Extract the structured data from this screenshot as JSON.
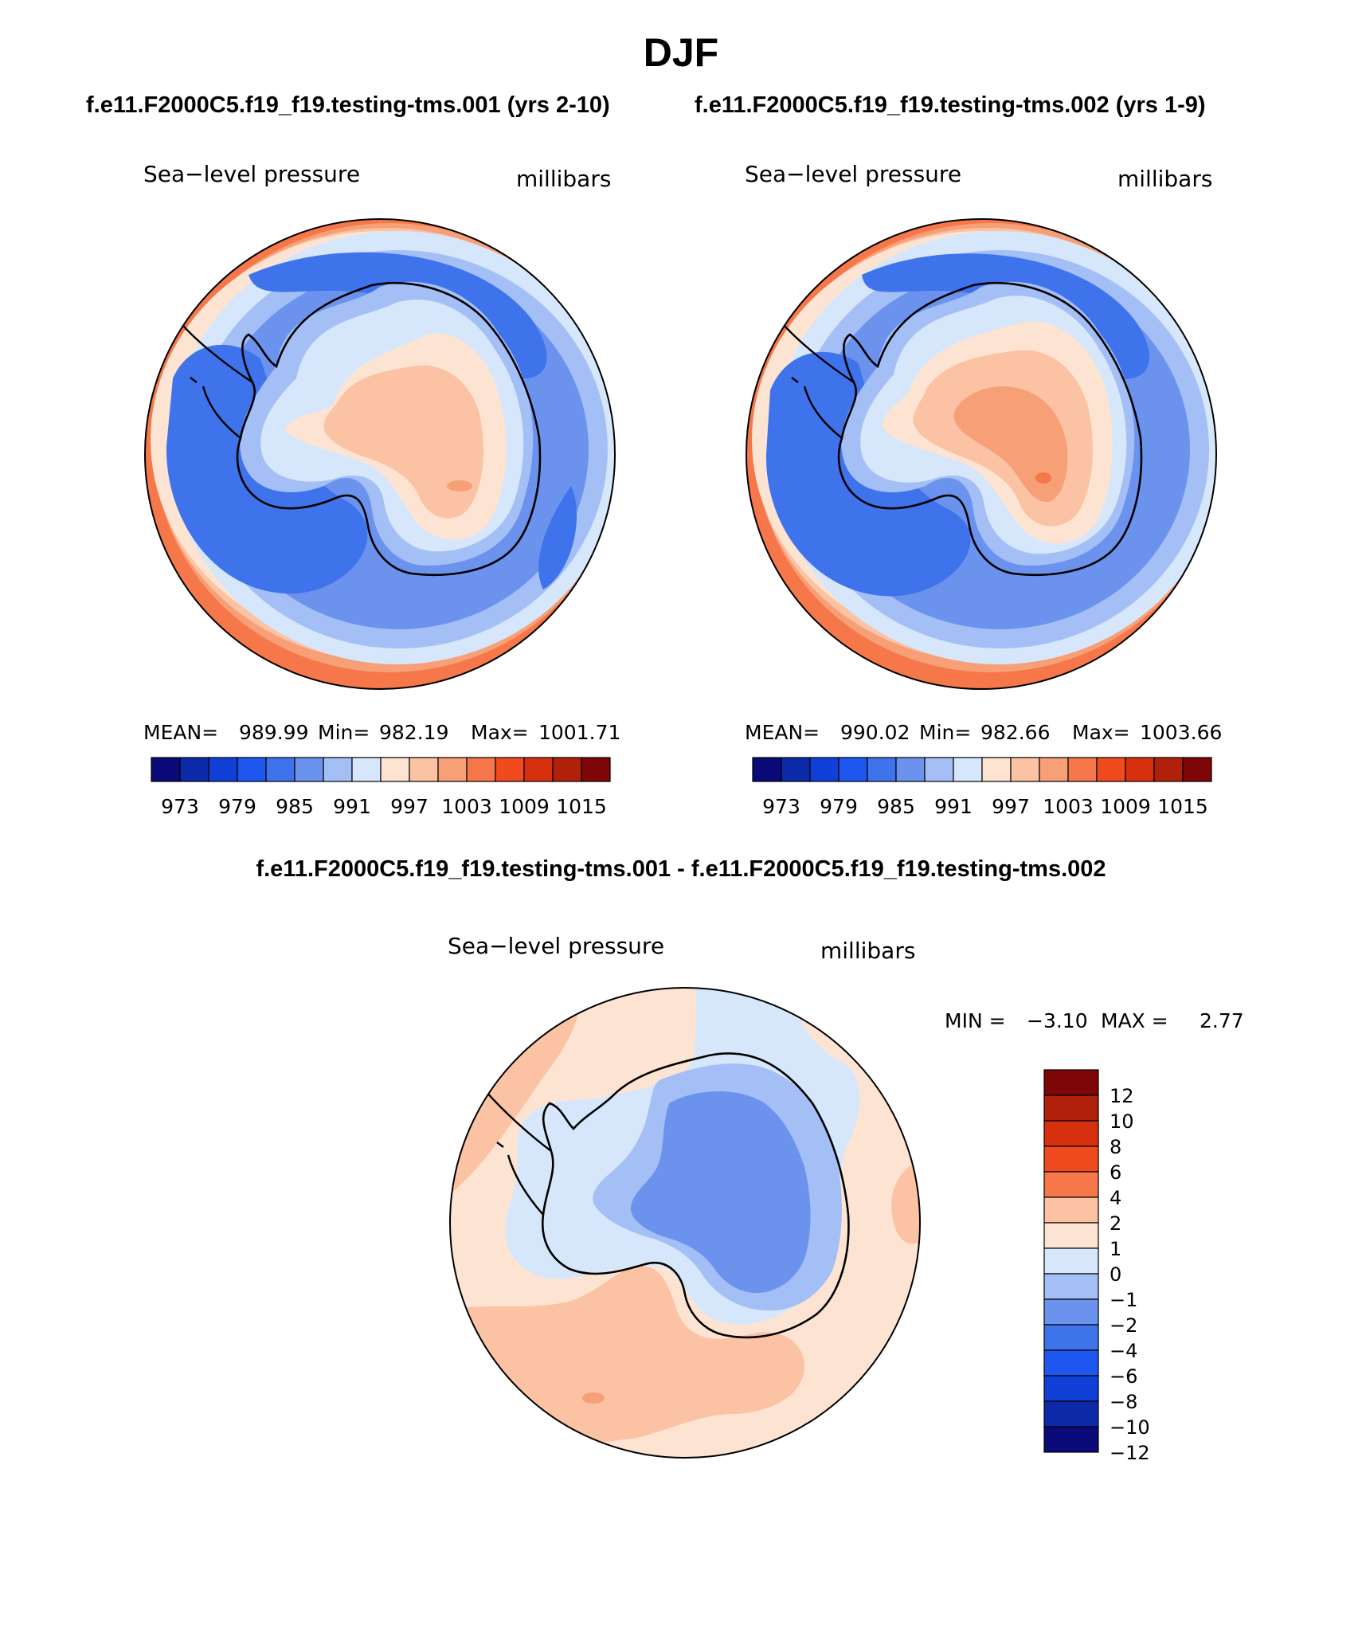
{
  "chart_data": {
    "type": "heatmap",
    "title": "DJF",
    "panels": [
      {
        "id": "case1",
        "case_title": "f.e11.F2000C5.f19_f19.testing-tms.001 (yrs 2-10)",
        "left_label": "Sea−level pressure",
        "right_label": "millibars",
        "stats": {
          "mean_label": "MEAN=",
          "mean": "989.99",
          "min_label": "Min=",
          "min": "982.19",
          "max_label": "Max=",
          "max": "1001.71"
        },
        "colorbar": {
          "colors": [
            "#0a0a78",
            "#0c2aa8",
            "#1040d8",
            "#1e56f0",
            "#3f73ec",
            "#6b93ee",
            "#a4bff5",
            "#d6e7fb",
            "#fde4d2",
            "#fbc2a4",
            "#f79f76",
            "#f5774a",
            "#f04b1e",
            "#d7300e",
            "#b0200a",
            "#7f0606"
          ],
          "ticks": [
            "973",
            "979",
            "985",
            "991",
            "997",
            "1003",
            "1009",
            "1015"
          ]
        }
      },
      {
        "id": "case2",
        "case_title": "f.e11.F2000C5.f19_f19.testing-tms.002 (yrs 1-9)",
        "left_label": "Sea−level pressure",
        "right_label": "millibars",
        "stats": {
          "mean_label": "MEAN=",
          "mean": "990.02",
          "min_label": "Min=",
          "min": "982.66",
          "max_label": "Max=",
          "max": "1003.66"
        },
        "colorbar": {
          "colors": [
            "#0a0a78",
            "#0c2aa8",
            "#1040d8",
            "#1e56f0",
            "#3f73ec",
            "#6b93ee",
            "#a4bff5",
            "#d6e7fb",
            "#fde4d2",
            "#fbc2a4",
            "#f79f76",
            "#f5774a",
            "#f04b1e",
            "#d7300e",
            "#b0200a",
            "#7f0606"
          ],
          "ticks": [
            "973",
            "979",
            "985",
            "991",
            "997",
            "1003",
            "1009",
            "1015"
          ]
        }
      },
      {
        "id": "diff",
        "diff_title": "f.e11.F2000C5.f19_f19.testing-tms.001 - f.e11.F2000C5.f19_f19.testing-tms.002",
        "left_label": "Sea−level pressure",
        "right_label": "millibars",
        "minmax": {
          "min_label": "MIN =",
          "min": "−3.10",
          "max_label": "MAX =",
          "max": "2.77"
        },
        "colorbar": {
          "colors": [
            "#7f0606",
            "#b0200a",
            "#d7300e",
            "#f04b1e",
            "#f5774a",
            "#fbc2a4",
            "#fde4d2",
            "#d6e7fb",
            "#a4bff5",
            "#6b93ee",
            "#3f73ec",
            "#1e56f0",
            "#1040d8",
            "#0c2aa8",
            "#0a0a78"
          ],
          "ticks": [
            "12",
            "10",
            "8",
            "6",
            "4",
            "2",
            "1",
            "0",
            "−1",
            "−2",
            "−4",
            "−6",
            "−8",
            "−10",
            "−12"
          ]
        }
      }
    ]
  }
}
